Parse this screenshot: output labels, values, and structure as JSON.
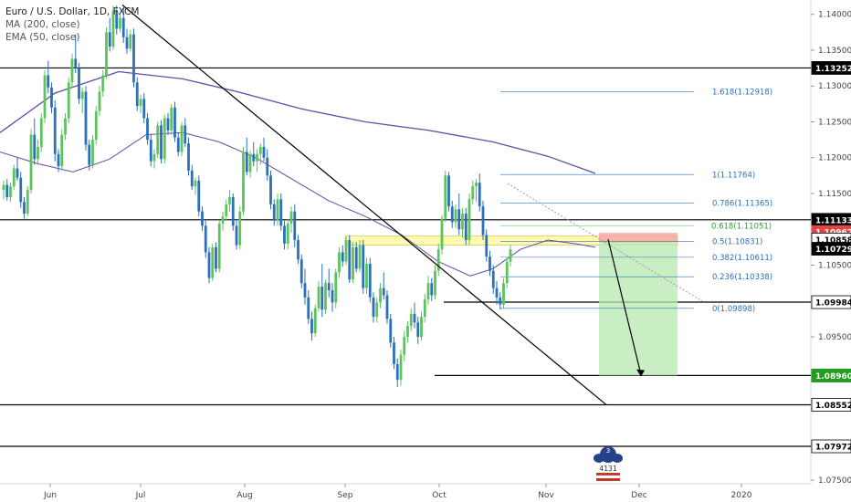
{
  "legend": {
    "symbol": "Euro / U.S. Dollar, 1D, FXCM",
    "ma": "MA (200, close)",
    "ema": "EMA (50, close)"
  },
  "logo": {
    "number": "3",
    "text": "4131"
  },
  "colors": {
    "up": "#5cc45c",
    "down": "#2b6fbd",
    "ma": "#5b4fa8",
    "ema": "#5b4fa8",
    "fib": "#2b6fbd",
    "fib_highlight": "#5cc45c",
    "zone": "#fffaa0",
    "target_box": "#b7e8b0",
    "stop_box": "#f5a3a3"
  },
  "chart_data": {
    "type": "candlestick",
    "ylim": [
      1.0745,
      1.142
    ],
    "y_ticks": [
      "1.14000",
      "1.13500",
      "1.13000",
      "1.12500",
      "1.12000",
      "1.11500",
      "1.11000",
      "1.10500",
      "1.10000",
      "1.09500",
      "1.09000",
      "1.08500",
      "1.08000",
      "1.07500"
    ],
    "x_tick_labels": [
      "Jun",
      "Jul",
      "Aug",
      "Sep",
      "Oct",
      "Nov",
      "Dec",
      "2020"
    ],
    "horizontal_levels": [
      1.13252,
      1.11133,
      1.09984,
      1.08961,
      1.08552,
      1.07972
    ],
    "price_labels": [
      {
        "value": "1.13252",
        "style": "black"
      },
      {
        "value": "1.11133",
        "style": "black"
      },
      {
        "value": "1.10962",
        "style": "red"
      },
      {
        "value": "1.10858",
        "style": "white"
      },
      {
        "value": "1.10729",
        "style": "black"
      },
      {
        "value": "1.09984",
        "style": "white"
      },
      {
        "value": "1.08961",
        "style": "white"
      },
      {
        "value": "1.08960",
        "style": "green"
      },
      {
        "value": "1.08552",
        "style": "white"
      },
      {
        "value": "1.07972",
        "style": "white"
      }
    ],
    "fib_levels": [
      {
        "label": "1.618(1.12918)",
        "value": 1.12918
      },
      {
        "label": "1(1.11764)",
        "value": 1.11764
      },
      {
        "label": "0.786(1.11365)",
        "value": 1.11365
      },
      {
        "label": "0.618(1.11051)",
        "value": 1.11051
      },
      {
        "label": "0.5(1.10831)",
        "value": 1.10831
      },
      {
        "label": "0.382(1.10611)",
        "value": 1.10611
      },
      {
        "label": "0.236(1.10338)",
        "value": 1.10338
      },
      {
        "label": "0(1.09898)",
        "value": 1.09898
      }
    ],
    "supply_zone": [
      1.1078,
      1.1091
    ],
    "position": {
      "stop": 1.1095,
      "entry": 1.1082,
      "target": 1.0896
    },
    "ma200": [
      [
        0,
        1.1235
      ],
      [
        60,
        1.129
      ],
      [
        130,
        1.132
      ],
      [
        200,
        1.131
      ],
      [
        260,
        1.1292
      ],
      [
        330,
        1.1268
      ],
      [
        400,
        1.125
      ],
      [
        470,
        1.1238
      ],
      [
        540,
        1.1222
      ],
      [
        600,
        1.1202
      ],
      [
        652,
        1.1178
      ]
    ],
    "ema50": [
      [
        0,
        1.1208
      ],
      [
        40,
        1.1192
      ],
      [
        80,
        1.118
      ],
      [
        120,
        1.1198
      ],
      [
        160,
        1.1232
      ],
      [
        200,
        1.1235
      ],
      [
        240,
        1.1222
      ],
      [
        280,
        1.12
      ],
      [
        320,
        1.117
      ],
      [
        360,
        1.114
      ],
      [
        400,
        1.1118
      ],
      [
        440,
        1.1092
      ],
      [
        480,
        1.1055
      ],
      [
        515,
        1.1035
      ],
      [
        540,
        1.1045
      ],
      [
        570,
        1.1072
      ],
      [
        600,
        1.1085
      ],
      [
        630,
        1.108
      ],
      [
        652,
        1.1075
      ]
    ],
    "candles": [
      [
        1.1155,
        1.1168,
        1.1142,
        1.1162
      ],
      [
        1.1162,
        1.117,
        1.114,
        1.1145
      ],
      [
        1.1145,
        1.1165,
        1.1138,
        1.116
      ],
      [
        1.116,
        1.119,
        1.1155,
        1.1185
      ],
      [
        1.1185,
        1.12,
        1.1168,
        1.1172
      ],
      [
        1.1172,
        1.118,
        1.113,
        1.1138
      ],
      [
        1.1138,
        1.1145,
        1.1115,
        1.1122
      ],
      [
        1.1122,
        1.116,
        1.1118,
        1.1155
      ],
      [
        1.1155,
        1.124,
        1.115,
        1.1232
      ],
      [
        1.1232,
        1.1255,
        1.119,
        1.1198
      ],
      [
        1.1198,
        1.1225,
        1.119,
        1.1215
      ],
      [
        1.1215,
        1.1262,
        1.1208,
        1.1255
      ],
      [
        1.1255,
        1.1322,
        1.1248,
        1.1315
      ],
      [
        1.1315,
        1.1335,
        1.129,
        1.1298
      ],
      [
        1.1298,
        1.1305,
        1.1262,
        1.127
      ],
      [
        1.127,
        1.128,
        1.1195,
        1.1205
      ],
      [
        1.1205,
        1.1212,
        1.118,
        1.1188
      ],
      [
        1.1188,
        1.124,
        1.1182,
        1.1232
      ],
      [
        1.1232,
        1.1262,
        1.1225,
        1.1255
      ],
      [
        1.1255,
        1.1312,
        1.1248,
        1.1305
      ],
      [
        1.1305,
        1.1345,
        1.1298,
        1.1338
      ],
      [
        1.1338,
        1.1372,
        1.1318,
        1.1325
      ],
      [
        1.1325,
        1.1332,
        1.1275,
        1.1282
      ],
      [
        1.1282,
        1.1298,
        1.1262,
        1.1292
      ],
      [
        1.1292,
        1.13,
        1.121,
        1.1218
      ],
      [
        1.1218,
        1.1225,
        1.1182,
        1.119
      ],
      [
        1.119,
        1.1232,
        1.1185,
        1.1225
      ],
      [
        1.1225,
        1.1272,
        1.1218,
        1.1265
      ],
      [
        1.1265,
        1.13,
        1.1258,
        1.1292
      ],
      [
        1.1292,
        1.1322,
        1.1285,
        1.1315
      ],
      [
        1.1315,
        1.1382,
        1.131,
        1.1375
      ],
      [
        1.1375,
        1.1395,
        1.1348,
        1.1355
      ],
      [
        1.1355,
        1.1412,
        1.135,
        1.1405
      ],
      [
        1.1405,
        1.1412,
        1.1372,
        1.138
      ],
      [
        1.138,
        1.1402,
        1.1375,
        1.1395
      ],
      [
        1.1395,
        1.1408,
        1.136,
        1.1368
      ],
      [
        1.1368,
        1.138,
        1.1345,
        1.1352
      ],
      [
        1.1352,
        1.1378,
        1.1348,
        1.1372
      ],
      [
        1.1372,
        1.138,
        1.1298,
        1.1305
      ],
      [
        1.1305,
        1.1312,
        1.1265,
        1.1272
      ],
      [
        1.1272,
        1.1288,
        1.1262,
        1.1282
      ],
      [
        1.1282,
        1.129,
        1.1248,
        1.1255
      ],
      [
        1.1255,
        1.1262,
        1.1218,
        1.1225
      ],
      [
        1.1225,
        1.1232,
        1.1188,
        1.1195
      ],
      [
        1.1195,
        1.1212,
        1.1185,
        1.1205
      ],
      [
        1.1205,
        1.125,
        1.12,
        1.1245
      ],
      [
        1.1245,
        1.1252,
        1.1192,
        1.1198
      ],
      [
        1.1198,
        1.126,
        1.1192,
        1.1255
      ],
      [
        1.1255,
        1.1262,
        1.1232,
        1.1238
      ],
      [
        1.1238,
        1.1275,
        1.1232,
        1.127
      ],
      [
        1.127,
        1.1278,
        1.1222,
        1.1228
      ],
      [
        1.1228,
        1.1235,
        1.1202,
        1.1208
      ],
      [
        1.1208,
        1.125,
        1.1202,
        1.1245
      ],
      [
        1.1245,
        1.1255,
        1.1215,
        1.122
      ],
      [
        1.122,
        1.1228,
        1.1175,
        1.1182
      ],
      [
        1.1182,
        1.119,
        1.1155,
        1.116
      ],
      [
        1.116,
        1.1172,
        1.1148,
        1.1168
      ],
      [
        1.1168,
        1.1175,
        1.1118,
        1.1125
      ],
      [
        1.1125,
        1.1132,
        1.1098,
        1.1105
      ],
      [
        1.1105,
        1.1112,
        1.106,
        1.1068
      ],
      [
        1.1068,
        1.1075,
        1.1025,
        1.1032
      ],
      [
        1.1032,
        1.108,
        1.1028,
        1.1075
      ],
      [
        1.1075,
        1.1082,
        1.104,
        1.1045
      ],
      [
        1.1045,
        1.1112,
        1.104,
        1.1108
      ],
      [
        1.1108,
        1.1125,
        1.1098,
        1.1118
      ],
      [
        1.1118,
        1.1142,
        1.1112,
        1.1135
      ],
      [
        1.1135,
        1.1155,
        1.1125,
        1.1145
      ],
      [
        1.1145,
        1.115,
        1.1098,
        1.1105
      ],
      [
        1.1105,
        1.1112,
        1.1072,
        1.1078
      ],
      [
        1.1078,
        1.1132,
        1.1072,
        1.1125
      ],
      [
        1.1125,
        1.1215,
        1.112,
        1.1208
      ],
      [
        1.1208,
        1.1228,
        1.1175,
        1.118
      ],
      [
        1.118,
        1.121,
        1.1172,
        1.1205
      ],
      [
        1.1205,
        1.1222,
        1.1188,
        1.1195
      ],
      [
        1.1195,
        1.1212,
        1.118,
        1.1205
      ],
      [
        1.1205,
        1.122,
        1.119,
        1.1215
      ],
      [
        1.1215,
        1.1228,
        1.1195,
        1.12
      ],
      [
        1.12,
        1.1212,
        1.1168,
        1.1175
      ],
      [
        1.1175,
        1.1182,
        1.1128,
        1.1135
      ],
      [
        1.1135,
        1.1142,
        1.1105,
        1.1112
      ],
      [
        1.1112,
        1.115,
        1.1105,
        1.1142
      ],
      [
        1.1142,
        1.115,
        1.1098,
        1.1105
      ],
      [
        1.1105,
        1.1112,
        1.1072,
        1.108
      ],
      [
        1.108,
        1.1115,
        1.1072,
        1.1108
      ],
      [
        1.1108,
        1.1132,
        1.1095,
        1.1125
      ],
      [
        1.1125,
        1.1135,
        1.1075,
        1.1085
      ],
      [
        1.1085,
        1.1092,
        1.1052,
        1.1058
      ],
      [
        1.1058,
        1.1065,
        1.1018,
        1.1025
      ],
      [
        1.1025,
        1.1045,
        1.0995,
        1.1005
      ],
      [
        1.1005,
        1.1015,
        1.0968,
        1.0975
      ],
      [
        1.0975,
        1.0985,
        1.0945,
        1.0955
      ],
      [
        1.0955,
        1.0995,
        1.095,
        1.099
      ],
      [
        1.099,
        1.1028,
        1.0985,
        1.102
      ],
      [
        1.102,
        1.1052,
        1.0978,
        1.0988
      ],
      [
        1.0988,
        1.103,
        1.0982,
        1.1025
      ],
      [
        1.1025,
        1.1045,
        1.1005,
        1.1015
      ],
      [
        1.1015,
        1.1025,
        1.0985,
        1.0998
      ],
      [
        1.0998,
        1.1045,
        1.099,
        1.104
      ],
      [
        1.104,
        1.1075,
        1.1032,
        1.1068
      ],
      [
        1.1068,
        1.1078,
        1.1048,
        1.1055
      ],
      [
        1.1055,
        1.109,
        1.105,
        1.1085
      ],
      [
        1.1085,
        1.1092,
        1.1025,
        1.103
      ],
      [
        1.103,
        1.1082,
        1.1025,
        1.1075
      ],
      [
        1.1075,
        1.1082,
        1.104,
        1.1045
      ],
      [
        1.1045,
        1.1085,
        1.104,
        1.1078
      ],
      [
        1.1078,
        1.1085,
        1.101,
        1.1018
      ],
      [
        1.1018,
        1.106,
        1.101,
        1.1052
      ],
      [
        1.1052,
        1.106,
        1.0998,
        1.1005
      ],
      [
        1.1005,
        1.1012,
        1.097,
        1.0978
      ],
      [
        1.0978,
        1.1005,
        1.097,
        1.0998
      ],
      [
        1.0998,
        1.1025,
        1.099,
        1.1018
      ],
      [
        1.1018,
        1.104,
        1.1002,
        1.1008
      ],
      [
        1.1008,
        1.1015,
        1.0968,
        1.0975
      ],
      [
        1.0975,
        1.0982,
        1.0935,
        1.0942
      ],
      [
        1.0942,
        1.095,
        1.0905,
        1.0912
      ],
      [
        1.0912,
        1.092,
        1.088,
        1.089
      ],
      [
        1.089,
        1.0932,
        1.0882,
        1.0925
      ],
      [
        1.0925,
        1.0958,
        1.0915,
        1.095
      ],
      [
        1.095,
        1.0972,
        1.0942,
        1.0965
      ],
      [
        1.0965,
        1.099,
        1.0958,
        1.0982
      ],
      [
        1.0982,
        1.0998,
        1.0962,
        1.097
      ],
      [
        1.097,
        1.0978,
        1.094,
        1.095
      ],
      [
        1.095,
        1.0985,
        1.0945,
        1.0978
      ],
      [
        1.0978,
        1.101,
        1.097,
        1.1002
      ],
      [
        1.1002,
        1.1035,
        1.0995,
        1.1025
      ],
      [
        1.1025,
        1.1032,
        1.1,
        1.1008
      ],
      [
        1.1008,
        1.105,
        1.1002,
        1.1042
      ],
      [
        1.1042,
        1.108,
        1.1035,
        1.1072
      ],
      [
        1.1072,
        1.112,
        1.1065,
        1.1115
      ],
      [
        1.1115,
        1.1182,
        1.111,
        1.1175
      ],
      [
        1.1175,
        1.118,
        1.1125,
        1.1132
      ],
      [
        1.1132,
        1.114,
        1.1102,
        1.111
      ],
      [
        1.111,
        1.1135,
        1.1102,
        1.1128
      ],
      [
        1.1128,
        1.115,
        1.1092,
        1.11
      ],
      [
        1.11,
        1.113,
        1.1088,
        1.1122
      ],
      [
        1.1122,
        1.113,
        1.1078,
        1.1085
      ],
      [
        1.1085,
        1.115,
        1.1078,
        1.1142
      ],
      [
        1.1142,
        1.1168,
        1.1135,
        1.116
      ],
      [
        1.116,
        1.117,
        1.1138,
        1.1165
      ],
      [
        1.1165,
        1.1178,
        1.1125,
        1.1132
      ],
      [
        1.1132,
        1.114,
        1.1085,
        1.1092
      ],
      [
        1.1092,
        1.11,
        1.1055,
        1.1062
      ],
      [
        1.1062,
        1.107,
        1.1035,
        1.1042
      ],
      [
        1.1042,
        1.105,
        1.101,
        1.1018
      ],
      [
        1.1018,
        1.1028,
        1.0995,
        1.1005
      ],
      [
        1.1005,
        1.1012,
        1.0988,
        1.0995
      ],
      [
        1.0995,
        1.1032,
        1.099,
        1.1025
      ],
      [
        1.1025,
        1.106,
        1.1018,
        1.1055
      ],
      [
        1.1055,
        1.1078,
        1.1048,
        1.1072
      ]
    ]
  }
}
